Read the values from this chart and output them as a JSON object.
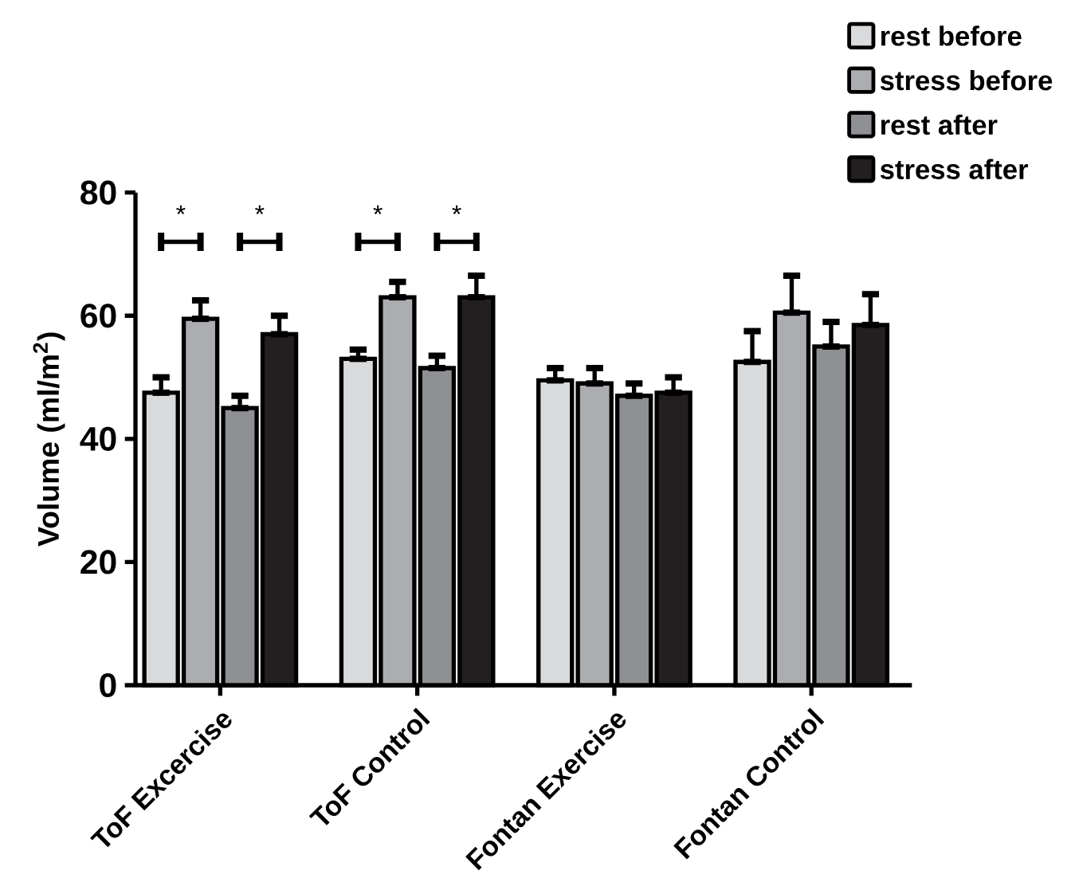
{
  "chart_data": {
    "type": "bar",
    "ylabel": "Volume (ml/m$^{2}$)",
    "categories": [
      "ToF Excercise",
      "ToF Control",
      "Fontan Exercise",
      "Fontan Control"
    ],
    "series": [
      {
        "name": "rest before",
        "color": "#d9dadc",
        "values": [
          47.5,
          53,
          49.5,
          52.5
        ],
        "errors": [
          [
            47.5,
            50
          ],
          [
            53,
            54.5
          ],
          [
            49.5,
            51.5
          ],
          [
            52.5,
            57.5
          ]
        ]
      },
      {
        "name": "stress before",
        "color": "#acadb0",
        "values": [
          59.5,
          63,
          49,
          60.5
        ],
        "errors": [
          [
            59.5,
            62.5
          ],
          [
            63,
            65.5
          ],
          [
            49,
            51.5
          ],
          [
            60.5,
            66.5
          ]
        ]
      },
      {
        "name": "rest after",
        "color": "#8f9094",
        "values": [
          45,
          51.5,
          47,
          55
        ],
        "errors": [
          [
            45,
            47
          ],
          [
            51.5,
            53.5
          ],
          [
            47,
            49
          ],
          [
            55,
            59
          ]
        ]
      },
      {
        "name": "stress after",
        "color": "#231f20",
        "values": [
          57,
          63,
          47.5,
          58.5
        ],
        "errors": [
          [
            57,
            60
          ],
          [
            63,
            66.5
          ],
          [
            47.5,
            50
          ],
          [
            58.5,
            63.5
          ]
        ]
      }
    ],
    "ylim": [
      0,
      80
    ],
    "yticks": [
      0,
      20,
      40,
      60,
      80
    ],
    "legend": "top right",
    "annotations": [
      "*",
      "*",
      "*",
      "*"
    ]
  }
}
